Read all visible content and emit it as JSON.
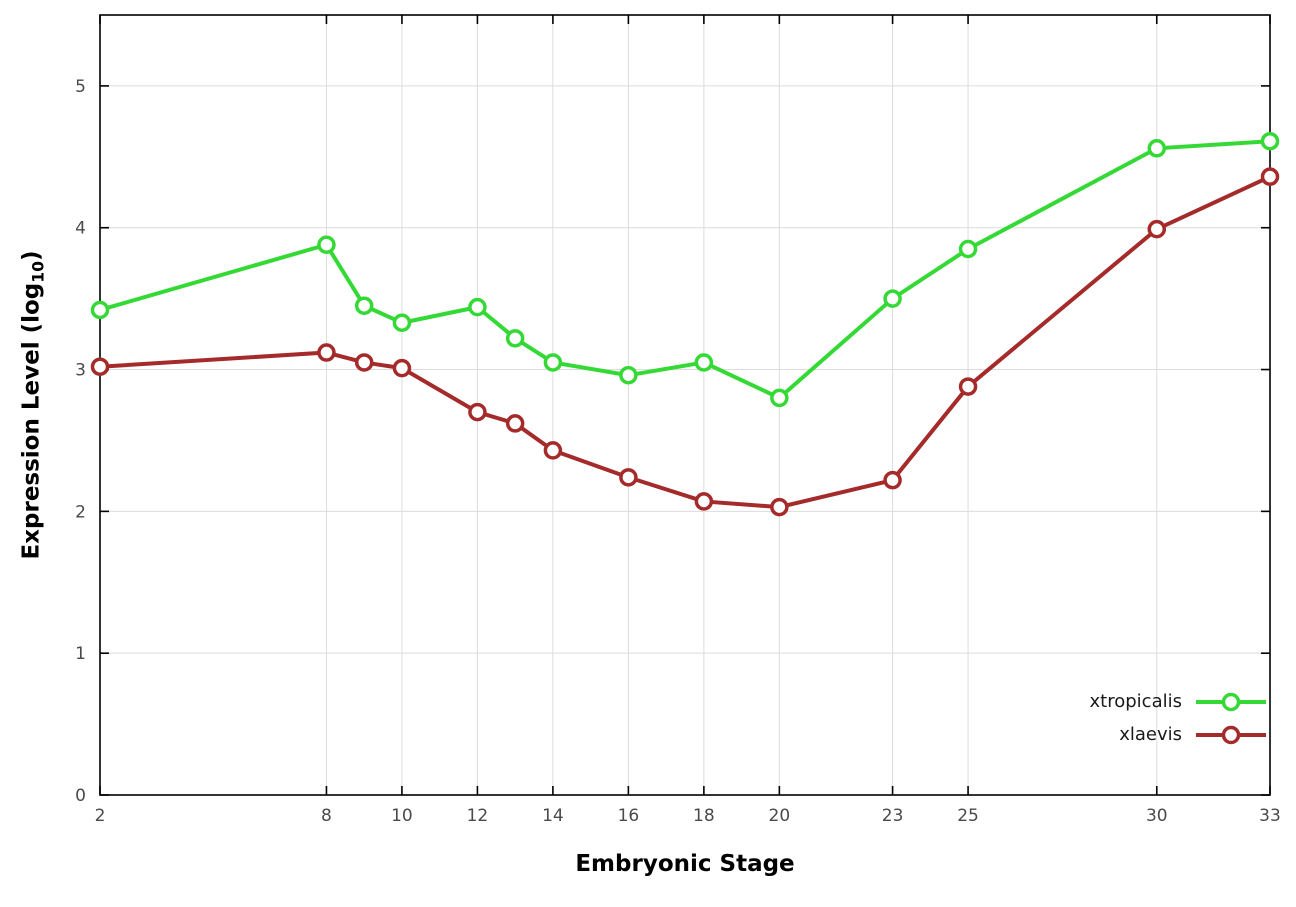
{
  "chart_data": {
    "type": "line",
    "title": "",
    "xlabel": "Embryonic Stage",
    "ylabel": "Expression Level (log10)",
    "ylabel_parts": {
      "main": "Expression Level (log",
      "sub": "10",
      "end": ")"
    },
    "x": [
      2,
      8,
      9,
      10,
      12,
      13,
      14,
      16,
      18,
      20,
      23,
      25,
      30,
      33
    ],
    "series": [
      {
        "name": "xtropicalis",
        "color": "#35d935",
        "values": [
          3.42,
          3.88,
          3.45,
          3.33,
          3.44,
          3.22,
          3.05,
          2.96,
          3.05,
          2.8,
          3.5,
          3.85,
          4.56,
          4.61
        ]
      },
      {
        "name": "xlaevis",
        "color": "#a52a2a",
        "values": [
          3.02,
          3.12,
          3.05,
          3.01,
          2.7,
          2.62,
          2.43,
          2.24,
          2.07,
          2.03,
          2.22,
          2.88,
          3.99,
          4.36
        ]
      }
    ],
    "xticks": [
      2,
      8,
      10,
      12,
      14,
      16,
      18,
      20,
      23,
      25,
      30,
      33
    ],
    "yticks": [
      0,
      1,
      2,
      3,
      4,
      5
    ],
    "xlim": [
      2,
      33
    ],
    "ylim": [
      0,
      5.5
    ],
    "grid": true,
    "legend_position": "bottom-right",
    "colors": {
      "grid": "#dcdcdc",
      "axis": "#000000",
      "tick_label": "#4a4a4a"
    }
  }
}
